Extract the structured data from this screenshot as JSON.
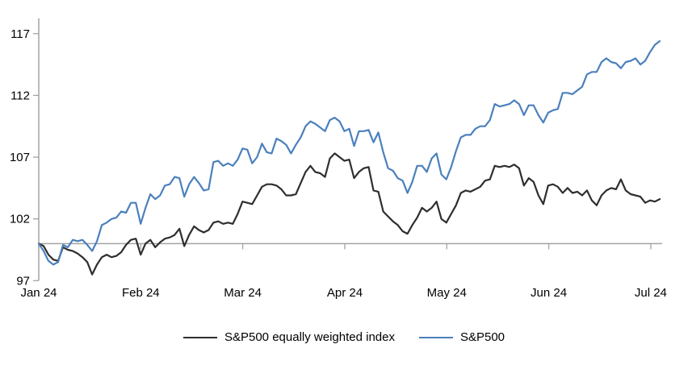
{
  "page": {
    "background": "#ffffff"
  },
  "chart_data": {
    "type": "line",
    "title": "",
    "description": "Indexed performance (start of 2024 = 100) of the S&P500 and the S&P500 equally weighted index, daily, Jan 2024 - early Jul 2024",
    "x_axis": {
      "type": "date",
      "tick_labels": [
        "Jan 24",
        "Feb 24",
        "Mar 24",
        "Apr 24",
        "May 24",
        "Jun 24",
        "Jul 24"
      ],
      "label": ""
    },
    "y_axis": {
      "tick_labels": [
        "97",
        "102",
        "107",
        "112",
        "117"
      ],
      "tick_values": [
        97,
        102,
        107,
        112,
        117
      ],
      "range": [
        97,
        118.25
      ],
      "axis_crosses_at": 100,
      "label": ""
    },
    "grid": false,
    "legend_position": "bottom-center",
    "axis_color": "#a3a3a3",
    "dates": [
      "12-29",
      "01-02",
      "01-03",
      "01-04",
      "01-05",
      "01-08",
      "01-09",
      "01-10",
      "01-11",
      "01-12",
      "01-16",
      "01-17",
      "01-18",
      "01-19",
      "01-22",
      "01-23",
      "01-24",
      "01-25",
      "01-26",
      "01-29",
      "01-30",
      "01-31",
      "02-01",
      "02-02",
      "02-05",
      "02-06",
      "02-07",
      "02-08",
      "02-09",
      "02-12",
      "02-13",
      "02-14",
      "02-15",
      "02-16",
      "02-20",
      "02-21",
      "02-22",
      "02-23",
      "02-26",
      "02-27",
      "02-28",
      "02-29",
      "03-01",
      "03-04",
      "03-05",
      "03-06",
      "03-07",
      "03-08",
      "03-11",
      "03-12",
      "03-13",
      "03-14",
      "03-15",
      "03-18",
      "03-19",
      "03-20",
      "03-21",
      "03-22",
      "03-25",
      "03-26",
      "03-27",
      "03-28",
      "04-01",
      "04-02",
      "04-03",
      "04-04",
      "04-05",
      "04-08",
      "04-09",
      "04-10",
      "04-11",
      "04-12",
      "04-15",
      "04-16",
      "04-17",
      "04-18",
      "04-19",
      "04-22",
      "04-23",
      "04-24",
      "04-25",
      "04-26",
      "04-29",
      "04-30",
      "05-01",
      "05-02",
      "05-03",
      "05-06",
      "05-07",
      "05-08",
      "05-09",
      "05-10",
      "05-13",
      "05-14",
      "05-15",
      "05-16",
      "05-17",
      "05-20",
      "05-21",
      "05-22",
      "05-23",
      "05-24",
      "05-28",
      "05-29",
      "05-30",
      "05-31",
      "06-03",
      "06-04",
      "06-05",
      "06-06",
      "06-07",
      "06-10",
      "06-11",
      "06-12",
      "06-13",
      "06-14",
      "06-17",
      "06-18",
      "06-20",
      "06-21",
      "06-24",
      "06-25",
      "06-26",
      "06-27",
      "06-28",
      "07-01",
      "07-02",
      "07-03",
      "07-05"
    ],
    "series": [
      {
        "name": "S&P500 equally weighted index",
        "color": "#2e2e2e",
        "values": [
          100,
          99.8,
          99.1,
          98.7,
          98.6,
          99.7,
          99.5,
          99.4,
          99.2,
          98.9,
          98.5,
          97.5,
          98.3,
          98.9,
          99.1,
          98.9,
          99.0,
          99.3,
          99.9,
          100.3,
          100.4,
          99.1,
          100.0,
          100.3,
          99.7,
          100.1,
          100.4,
          100.5,
          100.7,
          101.2,
          99.8,
          100.7,
          101.4,
          101.1,
          100.9,
          101.1,
          101.7,
          101.8,
          101.6,
          101.7,
          101.6,
          102.4,
          103.4,
          103.3,
          103.2,
          103.9,
          104.6,
          104.8,
          104.8,
          104.7,
          104.4,
          103.9,
          103.9,
          104.0,
          104.9,
          105.8,
          106.3,
          105.8,
          105.7,
          105.4,
          106.9,
          107.3,
          107.0,
          106.7,
          106.8,
          105.3,
          105.8,
          106.1,
          106.2,
          104.3,
          104.2,
          102.6,
          102.2,
          101.8,
          101.5,
          101.0,
          100.8,
          101.5,
          102.1,
          102.9,
          102.6,
          102.9,
          103.4,
          102.0,
          101.7,
          102.4,
          103.1,
          104.1,
          104.3,
          104.2,
          104.4,
          104.6,
          105.1,
          105.2,
          106.3,
          106.2,
          106.3,
          106.2,
          106.4,
          106.1,
          104.7,
          105.3,
          105.0,
          103.9,
          103.2,
          104.7,
          104.8,
          104.6,
          104.1,
          104.5,
          104.1,
          104.2,
          103.9,
          104.3,
          103.5,
          103.1,
          103.9,
          104.3,
          104.5,
          104.4,
          105.2,
          104.3,
          104.0,
          103.9,
          103.8,
          103.3,
          103.5,
          103.4,
          103.6
        ]
      },
      {
        "name": "S&P500",
        "color": "#4b80bc",
        "values": [
          100,
          99.4,
          98.6,
          98.3,
          98.5,
          99.9,
          99.7,
          100.3,
          100.2,
          100.3,
          99.9,
          99.4,
          100.2,
          101.5,
          101.7,
          102.0,
          102.1,
          102.6,
          102.5,
          103.3,
          103.3,
          101.6,
          102.9,
          104.0,
          103.6,
          103.9,
          104.7,
          104.8,
          105.4,
          105.3,
          103.8,
          104.8,
          105.4,
          104.9,
          104.3,
          104.4,
          106.6,
          106.7,
          106.3,
          106.5,
          106.3,
          106.8,
          107.7,
          107.6,
          106.5,
          107.0,
          108.1,
          107.4,
          107.3,
          108.5,
          108.3,
          108.0,
          107.3,
          108.0,
          108.6,
          109.5,
          109.9,
          109.7,
          109.4,
          109.1,
          110.0,
          110.2,
          109.9,
          109.1,
          109.3,
          107.9,
          109.1,
          109.1,
          109.2,
          108.2,
          109.0,
          107.4,
          106.1,
          105.9,
          105.3,
          105.1,
          104.1,
          105.0,
          106.3,
          106.3,
          105.8,
          106.9,
          107.3,
          105.6,
          105.2,
          106.2,
          107.5,
          108.6,
          108.8,
          108.8,
          109.3,
          109.5,
          109.5,
          110.0,
          111.3,
          111.1,
          111.2,
          111.3,
          111.6,
          111.3,
          110.4,
          111.2,
          111.2,
          110.4,
          109.8,
          110.6,
          110.8,
          110.9,
          112.2,
          112.2,
          112.1,
          112.4,
          112.7,
          113.7,
          113.9,
          113.9,
          114.7,
          115.0,
          114.7,
          114.6,
          114.2,
          114.7,
          114.8,
          115.0,
          114.5,
          114.8,
          115.5,
          116.1,
          116.4
        ]
      }
    ]
  }
}
